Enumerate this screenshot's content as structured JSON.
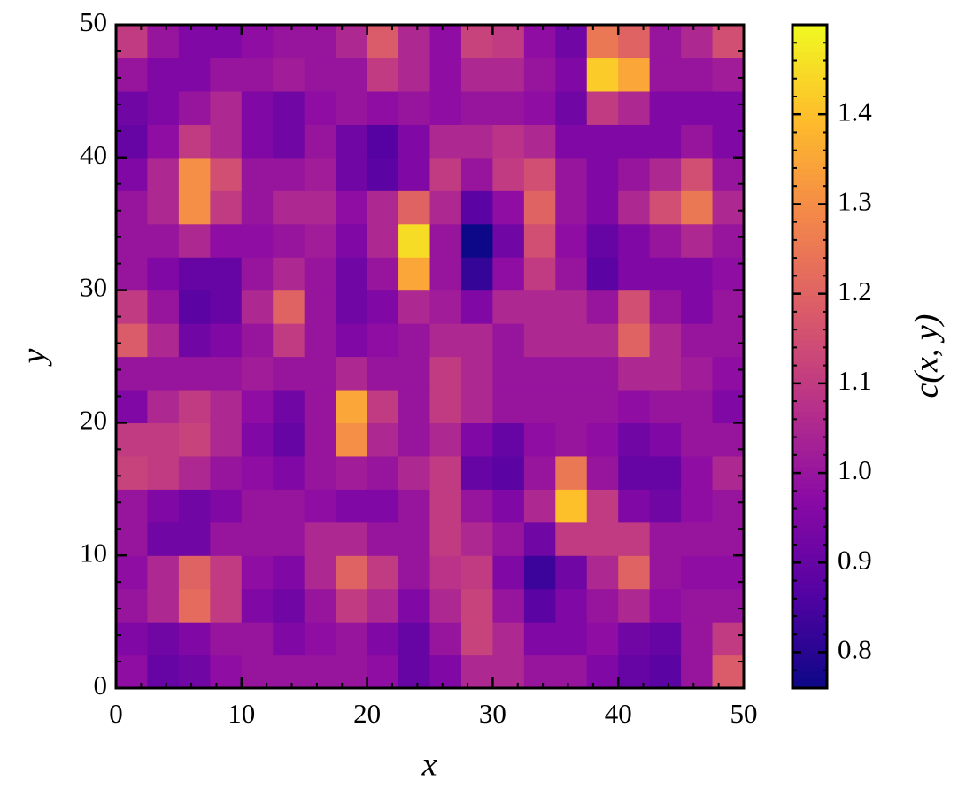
{
  "chart_data": {
    "type": "heatmap",
    "xlabel": "x",
    "ylabel": "y",
    "colorbar_label": "c(x, y)",
    "colormap": "plasma",
    "xlim": [
      0,
      50
    ],
    "ylim": [
      0,
      50
    ],
    "xticks": [
      0,
      10,
      20,
      30,
      40,
      50
    ],
    "yticks": [
      0,
      10,
      20,
      30,
      40,
      50
    ],
    "xminorticks": [
      2,
      4,
      6,
      8,
      12,
      14,
      16,
      18,
      22,
      24,
      26,
      28,
      32,
      34,
      36,
      38,
      42,
      44,
      46,
      48
    ],
    "yminorticks": [
      2,
      4,
      6,
      8,
      12,
      14,
      16,
      18,
      22,
      24,
      26,
      28,
      32,
      34,
      36,
      38,
      42,
      44,
      46,
      48
    ],
    "clim": [
      0.76,
      1.5
    ],
    "cticks": [
      0.8,
      0.9,
      {
        "value": 1.0,
        "label": "1.0"
      },
      1.1,
      1.2,
      1.3,
      1.4
    ],
    "cminorticks": [
      0.78,
      0.82,
      0.84,
      0.86,
      0.88,
      0.92,
      0.94,
      0.96,
      0.98,
      1.02,
      1.04,
      1.06,
      1.08,
      1.12,
      1.14,
      1.16,
      1.18,
      1.22,
      1.24,
      1.26,
      1.28,
      1.32,
      1.34,
      1.36,
      1.38,
      1.42,
      1.44,
      1.46,
      1.48
    ],
    "z": [
      [
        0.98,
        0.9,
        0.92,
        0.98,
        1.0,
        1.0,
        1.0,
        1.0,
        0.98,
        0.9,
        0.95,
        1.05,
        1.05,
        1.0,
        1.0,
        0.95,
        0.9,
        0.88,
        1.0,
        1.18
      ],
      [
        0.95,
        0.92,
        0.95,
        1.0,
        1.0,
        0.95,
        0.98,
        1.0,
        0.95,
        0.9,
        1.0,
        1.12,
        1.05,
        0.95,
        0.95,
        0.98,
        0.92,
        0.9,
        1.0,
        1.1
      ],
      [
        1.0,
        1.05,
        1.22,
        1.1,
        0.95,
        0.92,
        1.0,
        1.1,
        1.05,
        0.95,
        1.05,
        1.12,
        1.0,
        0.88,
        0.95,
        1.0,
        1.05,
        0.98,
        1.0,
        1.0
      ],
      [
        0.98,
        1.05,
        1.2,
        1.1,
        0.98,
        0.95,
        1.05,
        1.2,
        1.1,
        1.0,
        1.08,
        1.1,
        0.95,
        0.83,
        0.92,
        1.05,
        1.2,
        1.0,
        0.98,
        0.98
      ],
      [
        1.0,
        0.92,
        0.92,
        1.0,
        1.0,
        1.0,
        1.05,
        1.05,
        1.0,
        1.0,
        1.1,
        1.05,
        1.0,
        0.92,
        1.1,
        1.1,
        1.1,
        1.0,
        1.0,
        1.0
      ],
      [
        1.0,
        0.95,
        0.92,
        0.95,
        1.0,
        1.0,
        0.98,
        0.95,
        0.95,
        1.0,
        1.1,
        1.0,
        0.95,
        1.05,
        1.4,
        1.1,
        0.95,
        0.92,
        0.98,
        1.0
      ],
      [
        1.12,
        1.1,
        1.05,
        1.0,
        0.98,
        0.95,
        1.0,
        1.02,
        1.0,
        1.05,
        1.1,
        0.9,
        0.88,
        1.0,
        1.25,
        1.0,
        0.9,
        0.9,
        0.98,
        1.05
      ],
      [
        1.1,
        1.1,
        1.12,
        1.05,
        0.95,
        0.9,
        1.0,
        1.3,
        1.05,
        1.0,
        1.05,
        0.95,
        0.9,
        0.98,
        1.0,
        0.98,
        0.92,
        0.95,
        1.0,
        1.0
      ],
      [
        0.95,
        1.05,
        1.1,
        1.05,
        0.98,
        0.92,
        1.0,
        1.35,
        1.1,
        1.0,
        1.1,
        1.05,
        1.0,
        1.0,
        1.0,
        1.0,
        0.98,
        1.0,
        1.0,
        0.95
      ],
      [
        1.0,
        1.0,
        1.0,
        1.0,
        1.02,
        1.0,
        1.0,
        1.05,
        1.0,
        1.0,
        1.1,
        1.05,
        1.0,
        1.0,
        1.0,
        1.0,
        1.05,
        1.05,
        1.02,
        0.98
      ],
      [
        1.18,
        1.05,
        0.92,
        0.95,
        1.0,
        1.1,
        1.0,
        0.95,
        0.98,
        1.0,
        1.05,
        1.05,
        1.0,
        1.05,
        1.05,
        1.05,
        1.2,
        1.05,
        1.0,
        1.0
      ],
      [
        1.1,
        1.0,
        0.88,
        0.9,
        1.05,
        1.2,
        1.0,
        0.92,
        0.95,
        1.05,
        1.02,
        0.95,
        1.05,
        1.05,
        1.05,
        1.0,
        1.15,
        1.0,
        0.95,
        1.0
      ],
      [
        1.0,
        0.95,
        0.9,
        0.9,
        1.0,
        1.05,
        1.0,
        0.92,
        1.0,
        1.35,
        1.0,
        0.82,
        0.98,
        1.1,
        1.0,
        0.88,
        0.95,
        0.95,
        0.95,
        0.98
      ],
      [
        1.0,
        1.0,
        1.05,
        0.98,
        0.98,
        1.0,
        1.02,
        0.95,
        1.05,
        1.45,
        1.0,
        0.76,
        0.92,
        1.15,
        0.98,
        0.9,
        0.95,
        1.0,
        1.05,
        1.0
      ],
      [
        1.0,
        1.05,
        1.3,
        1.1,
        1.0,
        1.05,
        1.05,
        0.98,
        1.05,
        1.2,
        1.05,
        0.88,
        0.98,
        1.2,
        1.0,
        0.95,
        1.05,
        1.15,
        1.25,
        1.05
      ],
      [
        0.95,
        1.05,
        1.3,
        1.15,
        1.0,
        1.0,
        1.02,
        0.92,
        0.88,
        0.95,
        1.1,
        1.0,
        1.1,
        1.15,
        1.0,
        0.95,
        1.0,
        1.05,
        1.15,
        1.0
      ],
      [
        0.9,
        0.98,
        1.1,
        1.05,
        0.95,
        0.92,
        1.0,
        0.92,
        0.87,
        0.95,
        1.05,
        1.05,
        1.08,
        1.05,
        0.95,
        0.95,
        0.95,
        0.95,
        1.0,
        0.95
      ],
      [
        0.92,
        0.95,
        1.0,
        1.05,
        0.95,
        0.92,
        0.98,
        1.0,
        0.98,
        1.0,
        0.98,
        1.0,
        1.0,
        0.98,
        0.92,
        1.1,
        1.05,
        0.95,
        0.95,
        0.95
      ],
      [
        1.0,
        0.95,
        0.95,
        1.0,
        1.0,
        1.02,
        1.0,
        1.0,
        1.1,
        1.05,
        0.98,
        1.05,
        1.05,
        1.0,
        0.95,
        1.42,
        1.35,
        1.0,
        1.0,
        1.02
      ],
      [
        1.1,
        1.0,
        0.95,
        0.95,
        0.98,
        1.0,
        1.0,
        1.05,
        1.18,
        1.05,
        0.98,
        1.12,
        1.1,
        0.98,
        0.92,
        1.25,
        1.2,
        1.0,
        1.05,
        1.15
      ]
    ]
  }
}
